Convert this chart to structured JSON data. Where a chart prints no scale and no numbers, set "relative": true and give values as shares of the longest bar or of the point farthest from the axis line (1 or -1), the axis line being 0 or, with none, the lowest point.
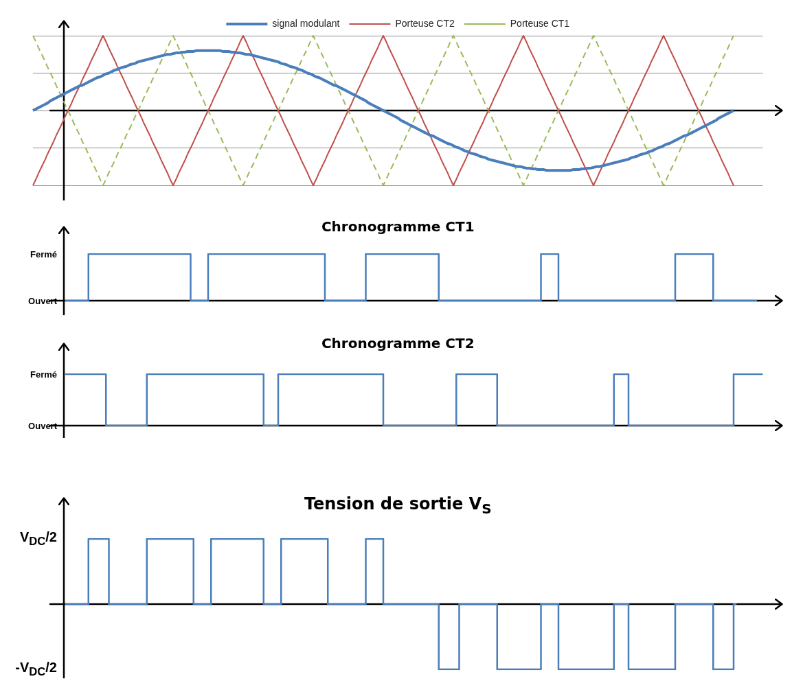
{
  "chart_data": [
    {
      "type": "line",
      "relative": true,
      "grid": "y",
      "legend": "top",
      "categories": [
        null,
        null,
        null,
        null,
        null,
        null,
        null,
        null,
        null,
        null,
        null,
        null,
        null,
        null,
        null,
        null,
        null,
        null,
        null,
        null,
        null,
        null,
        null,
        null,
        null,
        null,
        null,
        null,
        null,
        null,
        null,
        null,
        null,
        null,
        null,
        null,
        null,
        null,
        null,
        null,
        null,
        null,
        null,
        null,
        null,
        null,
        null,
        null,
        null,
        null,
        null,
        null,
        null,
        null,
        null,
        null,
        null,
        null,
        null,
        null,
        null,
        null,
        null,
        null,
        null,
        null,
        null,
        null,
        null,
        null,
        null,
        null,
        null,
        null,
        null,
        null,
        null,
        null,
        null,
        null,
        null,
        null,
        null,
        null,
        null,
        null,
        null,
        null,
        null,
        null,
        null,
        null,
        null,
        null,
        null,
        null,
        null,
        null,
        null,
        null,
        null,
        null,
        null,
        null,
        null,
        null,
        null,
        null,
        null,
        null,
        null,
        null,
        null,
        null,
        null,
        null,
        null,
        null,
        null,
        null,
        null,
        null,
        null,
        null,
        null,
        null,
        null,
        null,
        null,
        null,
        null,
        null,
        null,
        null,
        null,
        null,
        null,
        null,
        null,
        null,
        null,
        null,
        null,
        null,
        null,
        null,
        null,
        null,
        null,
        null,
        null,
        null,
        null,
        null,
        null,
        null,
        null,
        null,
        null,
        null,
        null,
        null,
        null,
        null,
        null,
        null,
        null,
        null,
        null,
        null,
        null,
        null,
        null,
        null,
        null,
        null,
        null,
        null,
        null,
        null,
        null,
        null,
        null,
        null,
        null,
        null,
        null,
        null,
        null,
        null,
        null,
        null,
        null,
        null,
        null,
        null,
        null,
        null,
        null,
        null,
        null,
        null,
        null,
        null,
        null,
        null,
        null,
        null,
        null,
        null,
        null,
        null,
        null,
        null,
        null,
        null,
        null,
        null,
        null,
        null,
        null,
        null,
        null,
        null,
        null,
        null,
        null,
        null,
        null,
        null,
        null,
        null,
        null,
        null,
        null,
        null,
        null,
        null,
        null,
        null,
        null,
        null,
        null,
        null,
        null,
        null,
        null,
        null,
        null,
        null,
        null
      ],
      "series": [
        {
          "name": "signal modulant",
          "color": "#4a7ebb",
          "values": [
            0,
            0.02,
            0.04,
            0.06,
            0.08,
            0.1,
            0.13,
            0.15,
            0.17,
            0.19,
            0.21,
            0.23,
            0.25,
            0.27,
            0.29,
            0.31,
            0.33,
            0.34,
            0.36,
            0.38,
            0.4,
            0.42,
            0.44,
            0.45,
            0.47,
            0.49,
            0.5,
            0.52,
            0.54,
            0.55,
            0.57,
            0.58,
            0.59,
            0.61,
            0.62,
            0.63,
            0.65,
            0.66,
            0.67,
            0.68,
            0.69,
            0.7,
            0.71,
            0.72,
            0.73,
            0.74,
            0.75,
            0.75,
            0.76,
            0.77,
            0.77,
            0.78,
            0.78,
            0.79,
            0.79,
            0.79,
            0.8,
            0.8,
            0.8,
            0.8,
            0.8,
            0.8,
            0.8,
            0.8,
            0.8,
            0.79,
            0.79,
            0.79,
            0.78,
            0.78,
            0.77,
            0.77,
            0.76,
            0.75,
            0.75,
            0.74,
            0.73,
            0.72,
            0.71,
            0.7,
            0.69,
            0.68,
            0.67,
            0.66,
            0.65,
            0.63,
            0.62,
            0.61,
            0.59,
            0.58,
            0.57,
            0.55,
            0.54,
            0.52,
            0.5,
            0.49,
            0.47,
            0.45,
            0.44,
            0.42,
            0.4,
            0.38,
            0.36,
            0.34,
            0.33,
            0.31,
            0.29,
            0.27,
            0.25,
            0.23,
            0.21,
            0.19,
            0.17,
            0.15,
            0.13,
            0.1,
            0.08,
            0.06,
            0.04,
            0.02,
            0,
            -0.02,
            -0.04,
            -0.06,
            -0.08,
            -0.1,
            -0.13,
            -0.15,
            -0.17,
            -0.19,
            -0.21,
            -0.23,
            -0.25,
            -0.27,
            -0.29,
            -0.31,
            -0.33,
            -0.34,
            -0.36,
            -0.38,
            -0.4,
            -0.42,
            -0.44,
            -0.45,
            -0.47,
            -0.49,
            -0.5,
            -0.52,
            -0.54,
            -0.55,
            -0.57,
            -0.58,
            -0.59,
            -0.61,
            -0.62,
            -0.63,
            -0.65,
            -0.66,
            -0.67,
            -0.68,
            -0.69,
            -0.7,
            -0.71,
            -0.72,
            -0.73,
            -0.74,
            -0.75,
            -0.75,
            -0.76,
            -0.77,
            -0.77,
            -0.78,
            -0.78,
            -0.79,
            -0.79,
            -0.79,
            -0.8,
            -0.8,
            -0.8,
            -0.8,
            -0.8,
            -0.8,
            -0.8,
            -0.8,
            -0.8,
            -0.79,
            -0.79,
            -0.79,
            -0.78,
            -0.78,
            -0.77,
            -0.77,
            -0.76,
            -0.75,
            -0.75,
            -0.74,
            -0.73,
            -0.72,
            -0.71,
            -0.7,
            -0.69,
            -0.68,
            -0.67,
            -0.66,
            -0.65,
            -0.63,
            -0.62,
            -0.61,
            -0.59,
            -0.58,
            -0.57,
            -0.55,
            -0.54,
            -0.52,
            -0.5,
            -0.49,
            -0.47,
            -0.45,
            -0.44,
            -0.42,
            -0.4,
            -0.38,
            -0.36,
            -0.34,
            -0.33,
            -0.31,
            -0.29,
            -0.27,
            -0.25,
            -0.23,
            -0.21,
            -0.19,
            -0.17,
            -0.15,
            -0.13,
            -0.1,
            -0.08,
            -0.06,
            -0.04,
            -0.02,
            0,
            null,
            null,
            null,
            null,
            null,
            null,
            null,
            null,
            null,
            null
          ]
        },
        {
          "name": "Porteuse CT2",
          "color": "#c0504d",
          "values": [
            -1,
            -0.92,
            -0.83,
            -0.75,
            -0.67,
            -0.58,
            -0.5,
            -0.42,
            -0.33,
            -0.25,
            -0.17,
            -0.08,
            0,
            0.08,
            0.17,
            0.25,
            0.33,
            0.42,
            0.5,
            0.58,
            0.67,
            0.75,
            0.83,
            0.92,
            1,
            0.92,
            0.83,
            0.75,
            0.67,
            0.58,
            0.5,
            0.42,
            0.33,
            0.25,
            0.17,
            0.08,
            0,
            -0.08,
            -0.17,
            -0.25,
            -0.33,
            -0.42,
            -0.5,
            -0.58,
            -0.67,
            -0.75,
            -0.83,
            -0.92,
            -1,
            -0.92,
            -0.83,
            -0.75,
            -0.67,
            -0.58,
            -0.5,
            -0.42,
            -0.33,
            -0.25,
            -0.17,
            -0.08,
            0,
            0.08,
            0.17,
            0.25,
            0.33,
            0.42,
            0.5,
            0.58,
            0.67,
            0.75,
            0.83,
            0.92,
            1,
            0.92,
            0.83,
            0.75,
            0.67,
            0.58,
            0.5,
            0.42,
            0.33,
            0.25,
            0.17,
            0.08,
            0,
            -0.08,
            -0.17,
            -0.25,
            -0.33,
            -0.42,
            -0.5,
            -0.58,
            -0.67,
            -0.75,
            -0.83,
            -0.92,
            -1,
            -0.92,
            -0.83,
            -0.75,
            -0.67,
            -0.58,
            -0.5,
            -0.42,
            -0.33,
            -0.25,
            -0.17,
            -0.08,
            0,
            0.08,
            0.17,
            0.25,
            0.33,
            0.42,
            0.5,
            0.58,
            0.67,
            0.75,
            0.83,
            0.92,
            1,
            0.92,
            0.83,
            0.75,
            0.67,
            0.58,
            0.5,
            0.42,
            0.33,
            0.25,
            0.17,
            0.08,
            0,
            -0.08,
            -0.17,
            -0.25,
            -0.33,
            -0.42,
            -0.5,
            -0.58,
            -0.67,
            -0.75,
            -0.83,
            -0.92,
            -1,
            -0.92,
            -0.83,
            -0.75,
            -0.67,
            -0.58,
            -0.5,
            -0.42,
            -0.33,
            -0.25,
            -0.17,
            -0.08,
            0,
            0.08,
            0.17,
            0.25,
            0.33,
            0.42,
            0.5,
            0.58,
            0.67,
            0.75,
            0.83,
            0.92,
            1,
            0.92,
            0.83,
            0.75,
            0.67,
            0.58,
            0.5,
            0.42,
            0.33,
            0.25,
            0.17,
            0.08,
            0,
            -0.08,
            -0.17,
            -0.25,
            -0.33,
            -0.42,
            -0.5,
            -0.58,
            -0.67,
            -0.75,
            -0.83,
            -0.92,
            -1,
            -0.92,
            -0.83,
            -0.75,
            -0.67,
            -0.58,
            -0.5,
            -0.42,
            -0.33,
            -0.25,
            -0.17,
            -0.08,
            0,
            0.08,
            0.17,
            0.25,
            0.33,
            0.42,
            0.5,
            0.58,
            0.67,
            0.75,
            0.83,
            0.92,
            1,
            0.92,
            0.83,
            0.75,
            0.67,
            0.58,
            0.5,
            0.42,
            0.33,
            0.25,
            0.17,
            0.08,
            0,
            -0.08,
            -0.17,
            -0.25,
            -0.33,
            -0.42,
            -0.5,
            -0.58,
            -0.67,
            -0.75,
            -0.83,
            -0.92,
            -1,
            null,
            null,
            null,
            null,
            null,
            null,
            null,
            null,
            null,
            null
          ]
        },
        {
          "name": "Porteuse CT1",
          "color": "#9bbb59",
          "line_style": "dashed",
          "values": [
            1,
            0.92,
            0.83,
            0.75,
            0.67,
            0.58,
            0.5,
            0.42,
            0.33,
            0.25,
            0.17,
            0.08,
            0,
            -0.08,
            -0.17,
            -0.25,
            -0.33,
            -0.42,
            -0.5,
            -0.58,
            -0.67,
            -0.75,
            -0.83,
            -0.92,
            -1,
            -0.92,
            -0.83,
            -0.75,
            -0.67,
            -0.58,
            -0.5,
            -0.42,
            -0.33,
            -0.25,
            -0.17,
            -0.08,
            0,
            0.08,
            0.17,
            0.25,
            0.33,
            0.42,
            0.5,
            0.58,
            0.67,
            0.75,
            0.83,
            0.92,
            1,
            0.92,
            0.83,
            0.75,
            0.67,
            0.58,
            0.5,
            0.42,
            0.33,
            0.25,
            0.17,
            0.08,
            0,
            -0.08,
            -0.17,
            -0.25,
            -0.33,
            -0.42,
            -0.5,
            -0.58,
            -0.67,
            -0.75,
            -0.83,
            -0.92,
            -1,
            -0.92,
            -0.83,
            -0.75,
            -0.67,
            -0.58,
            -0.5,
            -0.42,
            -0.33,
            -0.25,
            -0.17,
            -0.08,
            0,
            0.08,
            0.17,
            0.25,
            0.33,
            0.42,
            0.5,
            0.58,
            0.67,
            0.75,
            0.83,
            0.92,
            1,
            0.92,
            0.83,
            0.75,
            0.67,
            0.58,
            0.5,
            0.42,
            0.33,
            0.25,
            0.17,
            0.08,
            0,
            -0.08,
            -0.17,
            -0.25,
            -0.33,
            -0.42,
            -0.5,
            -0.58,
            -0.67,
            -0.75,
            -0.83,
            -0.92,
            -1,
            -0.92,
            -0.83,
            -0.75,
            -0.67,
            -0.58,
            -0.5,
            -0.42,
            -0.33,
            -0.25,
            -0.17,
            -0.08,
            0,
            0.08,
            0.17,
            0.25,
            0.33,
            0.42,
            0.5,
            0.58,
            0.67,
            0.75,
            0.83,
            0.92,
            1,
            0.92,
            0.83,
            0.75,
            0.67,
            0.58,
            0.5,
            0.42,
            0.33,
            0.25,
            0.17,
            0.08,
            0,
            -0.08,
            -0.17,
            -0.25,
            -0.33,
            -0.42,
            -0.5,
            -0.58,
            -0.67,
            -0.75,
            -0.83,
            -0.92,
            -1,
            -0.92,
            -0.83,
            -0.75,
            -0.67,
            -0.58,
            -0.5,
            -0.42,
            -0.33,
            -0.25,
            -0.17,
            -0.08,
            0,
            0.08,
            0.17,
            0.25,
            0.33,
            0.42,
            0.5,
            0.58,
            0.67,
            0.75,
            0.83,
            0.92,
            1,
            0.92,
            0.83,
            0.75,
            0.67,
            0.58,
            0.5,
            0.42,
            0.33,
            0.25,
            0.17,
            0.08,
            0,
            -0.08,
            -0.17,
            -0.25,
            -0.33,
            -0.42,
            -0.5,
            -0.58,
            -0.67,
            -0.75,
            -0.83,
            -0.92,
            -1,
            -0.92,
            -0.83,
            -0.75,
            -0.67,
            -0.58,
            -0.5,
            -0.42,
            -0.33,
            -0.25,
            -0.17,
            -0.08,
            0,
            0.08,
            0.17,
            0.25,
            0.33,
            0.42,
            0.5,
            0.58,
            0.67,
            0.75,
            0.83,
            0.92,
            1,
            null,
            null,
            null,
            null,
            null,
            null,
            null,
            null,
            null,
            null
          ]
        }
      ]
    },
    {
      "type": "step",
      "title": "Chronogramme CT1",
      "relative": true,
      "annotations": [
        "Fermé",
        "Ouvert"
      ],
      "categories": [
        null,
        null,
        null,
        null,
        null,
        null,
        null,
        null,
        null,
        null,
        null,
        null,
        null,
        null,
        null,
        null,
        null,
        null,
        null,
        null,
        null,
        null,
        null,
        null,
        null,
        null,
        null,
        null,
        null,
        null,
        null,
        null,
        null,
        null,
        null,
        null,
        null,
        null,
        null,
        null,
        null,
        null,
        null,
        null,
        null,
        null,
        null,
        null,
        null,
        null,
        null,
        null,
        null,
        null,
        null,
        null,
        null,
        null,
        null,
        null,
        null,
        null,
        null,
        null,
        null,
        null,
        null,
        null,
        null,
        null,
        null,
        null,
        null,
        null,
        null,
        null,
        null,
        null,
        null,
        null,
        null,
        null,
        null,
        null,
        null,
        null,
        null,
        null,
        null,
        null,
        null,
        null,
        null,
        null,
        null,
        null,
        null,
        null,
        null,
        null,
        null,
        null,
        null,
        null,
        null,
        null,
        null,
        null,
        null,
        null,
        null,
        null,
        null,
        null,
        null,
        null,
        null,
        null,
        null,
        null,
        null,
        null,
        null,
        null,
        null,
        null,
        null,
        null,
        null,
        null,
        null,
        null,
        null,
        null,
        null,
        null,
        null,
        null,
        null,
        null,
        null,
        null,
        null,
        null,
        null,
        null,
        null,
        null,
        null,
        null,
        null,
        null,
        null,
        null,
        null,
        null,
        null,
        null,
        null,
        null,
        null,
        null,
        null,
        null,
        null,
        null,
        null,
        null,
        null,
        null,
        null,
        null,
        null,
        null,
        null,
        null,
        null,
        null,
        null,
        null,
        null,
        null,
        null,
        null,
        null,
        null,
        null,
        null,
        null,
        null,
        null,
        null,
        null,
        null,
        null,
        null,
        null,
        null,
        null,
        null,
        null,
        null,
        null,
        null,
        null,
        null,
        null,
        null,
        null,
        null,
        null,
        null,
        null,
        null,
        null,
        null,
        null,
        null,
        null,
        null,
        null,
        null,
        null,
        null,
        null,
        null,
        null,
        null,
        null,
        null,
        null,
        null,
        null,
        null,
        null,
        null,
        null,
        null,
        null,
        null,
        null,
        null,
        null,
        null,
        null,
        null,
        null,
        null,
        null,
        null,
        null
      ],
      "color": "#4a7ebb",
      "values": [
        null,
        null,
        null,
        null,
        null,
        null,
        null,
        null,
        null,
        null,
        null,
        0,
        0,
        0,
        0,
        0,
        0,
        0,
        0,
        0,
        1,
        1,
        1,
        1,
        1,
        1,
        1,
        1,
        1,
        1,
        1,
        1,
        1,
        1,
        1,
        1,
        1,
        1,
        1,
        1,
        1,
        1,
        1,
        1,
        1,
        1,
        1,
        1,
        1,
        1,
        1,
        1,
        1,
        1,
        1,
        0,
        0,
        0,
        0,
        0,
        0,
        1,
        1,
        1,
        1,
        1,
        1,
        1,
        1,
        1,
        1,
        1,
        1,
        1,
        1,
        1,
        1,
        1,
        1,
        1,
        1,
        1,
        1,
        1,
        1,
        1,
        1,
        1,
        1,
        1,
        1,
        1,
        1,
        1,
        1,
        1,
        1,
        1,
        1,
        1,
        1,
        0,
        0,
        0,
        0,
        0,
        0,
        0,
        0,
        0,
        0,
        0,
        0,
        0,
        0,
        1,
        1,
        1,
        1,
        1,
        1,
        1,
        1,
        1,
        1,
        1,
        1,
        1,
        1,
        1,
        1,
        1,
        1,
        1,
        1,
        1,
        1,
        1,
        1,
        1,
        0,
        0,
        0,
        0,
        0,
        0,
        0,
        0,
        0,
        0,
        0,
        0,
        0,
        0,
        0,
        0,
        0,
        0,
        0,
        0,
        0,
        0,
        0,
        0,
        0,
        0,
        0,
        0,
        0,
        0,
        0,
        0,
        0,
        0,
        0,
        1,
        1,
        1,
        1,
        1,
        1,
        0,
        0,
        0,
        0,
        0,
        0,
        0,
        0,
        0,
        0,
        0,
        0,
        0,
        0,
        0,
        0,
        0,
        0,
        0,
        0,
        0,
        0,
        0,
        0,
        0,
        0,
        0,
        0,
        0,
        0,
        0,
        0,
        0,
        0,
        0,
        0,
        0,
        0,
        0,
        0,
        1,
        1,
        1,
        1,
        1,
        1,
        1,
        1,
        1,
        1,
        1,
        1,
        1,
        0,
        0,
        0,
        0,
        0,
        0,
        0,
        0,
        0,
        0,
        0,
        0,
        0,
        0,
        0,
        null,
        null
      ]
    },
    {
      "type": "step",
      "title": "Chronogramme CT2",
      "relative": true,
      "annotations": [
        "Fermé",
        "Ouvert"
      ],
      "categories": [
        null,
        null,
        null,
        null,
        null,
        null,
        null,
        null,
        null,
        null,
        null,
        null,
        null,
        null,
        null,
        null,
        null,
        null,
        null,
        null,
        null,
        null,
        null,
        null,
        null,
        null,
        null,
        null,
        null,
        null,
        null,
        null,
        null,
        null,
        null,
        null,
        null,
        null,
        null,
        null,
        null,
        null,
        null,
        null,
        null,
        null,
        null,
        null,
        null,
        null,
        null,
        null,
        null,
        null,
        null,
        null,
        null,
        null,
        null,
        null,
        null,
        null,
        null,
        null,
        null,
        null,
        null,
        null,
        null,
        null,
        null,
        null,
        null,
        null,
        null,
        null,
        null,
        null,
        null,
        null,
        null,
        null,
        null,
        null,
        null,
        null,
        null,
        null,
        null,
        null,
        null,
        null,
        null,
        null,
        null,
        null,
        null,
        null,
        null,
        null,
        null,
        null,
        null,
        null,
        null,
        null,
        null,
        null,
        null,
        null,
        null,
        null,
        null,
        null,
        null,
        null,
        null,
        null,
        null,
        null,
        null,
        null,
        null,
        null,
        null,
        null,
        null,
        null,
        null,
        null,
        null,
        null,
        null,
        null,
        null,
        null,
        null,
        null,
        null,
        null,
        null,
        null,
        null,
        null,
        null,
        null,
        null,
        null,
        null,
        null,
        null,
        null,
        null,
        null,
        null,
        null,
        null,
        null,
        null,
        null,
        null,
        null,
        null,
        null,
        null,
        null,
        null,
        null,
        null,
        null,
        null,
        null,
        null,
        null,
        null,
        null,
        null,
        null,
        null,
        null,
        null,
        null,
        null,
        null,
        null,
        null,
        null,
        null,
        null,
        null,
        null,
        null,
        null,
        null,
        null,
        null,
        null,
        null,
        null,
        null,
        null,
        null,
        null,
        null,
        null,
        null,
        null,
        null,
        null,
        null,
        null,
        null,
        null,
        null,
        null,
        null,
        null,
        null,
        null,
        null,
        null,
        null,
        null,
        null,
        null,
        null,
        null,
        null,
        null,
        null,
        null,
        null,
        null,
        null,
        null,
        null,
        null,
        null,
        null,
        null,
        null,
        null,
        null,
        null,
        null,
        null,
        null,
        null,
        null,
        null,
        null
      ],
      "color": "#4a7ebb",
      "values": [
        null,
        null,
        null,
        null,
        null,
        null,
        null,
        null,
        null,
        null,
        null,
        1,
        1,
        1,
        1,
        1,
        1,
        1,
        1,
        1,
        1,
        1,
        1,
        1,
        1,
        1,
        0,
        0,
        0,
        0,
        0,
        0,
        0,
        0,
        0,
        0,
        0,
        0,
        0,
        0,
        1,
        1,
        1,
        1,
        1,
        1,
        1,
        1,
        1,
        1,
        1,
        1,
        1,
        1,
        1,
        1,
        1,
        1,
        1,
        1,
        1,
        1,
        1,
        1,
        1,
        1,
        1,
        1,
        1,
        1,
        1,
        1,
        1,
        1,
        1,
        1,
        1,
        1,
        1,
        1,
        0,
        0,
        0,
        0,
        0,
        1,
        1,
        1,
        1,
        1,
        1,
        1,
        1,
        1,
        1,
        1,
        1,
        1,
        1,
        1,
        1,
        1,
        1,
        1,
        1,
        1,
        1,
        1,
        1,
        1,
        1,
        1,
        1,
        1,
        1,
        1,
        1,
        1,
        1,
        1,
        1,
        0,
        0,
        0,
        0,
        0,
        0,
        0,
        0,
        0,
        0,
        0,
        0,
        0,
        0,
        0,
        0,
        0,
        0,
        0,
        0,
        0,
        0,
        0,
        0,
        0,
        1,
        1,
        1,
        1,
        1,
        1,
        1,
        1,
        1,
        1,
        1,
        1,
        1,
        1,
        0,
        0,
        0,
        0,
        0,
        0,
        0,
        0,
        0,
        0,
        0,
        0,
        0,
        0,
        0,
        0,
        0,
        0,
        0,
        0,
        0,
        0,
        0,
        0,
        0,
        0,
        0,
        0,
        0,
        0,
        0,
        0,
        0,
        0,
        0,
        0,
        0,
        0,
        0,
        0,
        1,
        1,
        1,
        1,
        1,
        0,
        0,
        0,
        0,
        0,
        0,
        0,
        0,
        0,
        0,
        0,
        0,
        0,
        0,
        0,
        0,
        0,
        0,
        0,
        0,
        0,
        0,
        0,
        0,
        0,
        0,
        0,
        0,
        0,
        0,
        0,
        0,
        0,
        0,
        0,
        0,
        1,
        1,
        1,
        1,
        1,
        1,
        1,
        1,
        1,
        1
      ]
    },
    {
      "type": "step",
      "title": "Tension de sortie V$_{S}$",
      "relative": true,
      "annotations": [
        "V$_{DC}$/2",
        "-V$_{DC}$/2"
      ],
      "categories": [
        null,
        null,
        null,
        null,
        null,
        null,
        null,
        null,
        null,
        null,
        null,
        null,
        null,
        null,
        null,
        null,
        null,
        null,
        null,
        null,
        null,
        null,
        null,
        null,
        null,
        null,
        null,
        null,
        null,
        null,
        null,
        null,
        null,
        null,
        null,
        null,
        null,
        null,
        null,
        null,
        null,
        null,
        null,
        null,
        null,
        null,
        null,
        null,
        null,
        null,
        null,
        null,
        null,
        null,
        null,
        null,
        null,
        null,
        null,
        null,
        null,
        null,
        null,
        null,
        null,
        null,
        null,
        null,
        null,
        null,
        null,
        null,
        null,
        null,
        null,
        null,
        null,
        null,
        null,
        null,
        null,
        null,
        null,
        null,
        null,
        null,
        null,
        null,
        null,
        null,
        null,
        null,
        null,
        null,
        null,
        null,
        null,
        null,
        null,
        null,
        null,
        null,
        null,
        null,
        null,
        null,
        null,
        null,
        null,
        null,
        null,
        null,
        null,
        null,
        null,
        null,
        null,
        null,
        null,
        null,
        null,
        null,
        null,
        null,
        null,
        null,
        null,
        null,
        null,
        null,
        null,
        null,
        null,
        null,
        null,
        null,
        null,
        null,
        null,
        null,
        null,
        null,
        null,
        null,
        null,
        null,
        null,
        null,
        null,
        null,
        null,
        null,
        null,
        null,
        null,
        null,
        null,
        null,
        null,
        null,
        null,
        null,
        null,
        null,
        null,
        null,
        null,
        null,
        null,
        null,
        null,
        null,
        null,
        null,
        null,
        null,
        null,
        null,
        null,
        null,
        null,
        null,
        null,
        null,
        null,
        null,
        null,
        null,
        null,
        null,
        null,
        null,
        null,
        null,
        null,
        null,
        null,
        null,
        null,
        null,
        null,
        null,
        null,
        null,
        null,
        null,
        null,
        null,
        null,
        null,
        null,
        null,
        null,
        null,
        null,
        null,
        null,
        null,
        null,
        null,
        null,
        null,
        null,
        null,
        null,
        null,
        null,
        null,
        null,
        null,
        null,
        null,
        null,
        null,
        null,
        null,
        null,
        null,
        null,
        null,
        null,
        null,
        null,
        null,
        null,
        null,
        null,
        null,
        null,
        null,
        null
      ],
      "color": "#4a7ebb",
      "values": [
        null,
        null,
        null,
        null,
        null,
        null,
        null,
        null,
        null,
        null,
        null,
        0,
        0,
        0,
        0,
        0,
        0,
        0,
        0,
        0,
        1,
        1,
        1,
        1,
        1,
        1,
        1,
        0,
        0,
        0,
        0,
        0,
        0,
        0,
        0,
        0,
        0,
        0,
        0,
        0,
        1,
        1,
        1,
        1,
        1,
        1,
        1,
        1,
        1,
        1,
        1,
        1,
        1,
        1,
        1,
        1,
        0,
        0,
        0,
        0,
        0,
        0,
        1,
        1,
        1,
        1,
        1,
        1,
        1,
        1,
        1,
        1,
        1,
        1,
        1,
        1,
        1,
        1,
        1,
        1,
        0,
        0,
        0,
        0,
        0,
        0,
        1,
        1,
        1,
        1,
        1,
        1,
        1,
        1,
        1,
        1,
        1,
        1,
        1,
        1,
        1,
        1,
        0,
        0,
        0,
        0,
        0,
        0,
        0,
        0,
        0,
        0,
        0,
        0,
        0,
        1,
        1,
        1,
        1,
        1,
        1,
        0,
        0,
        0,
        0,
        0,
        0,
        0,
        0,
        0,
        0,
        0,
        0,
        0,
        0,
        0,
        0,
        0,
        0,
        0,
        -1,
        -1,
        -1,
        -1,
        -1,
        -1,
        -1,
        0,
        0,
        0,
        0,
        0,
        0,
        0,
        0,
        0,
        0,
        0,
        0,
        0,
        -1,
        -1,
        -1,
        -1,
        -1,
        -1,
        -1,
        -1,
        -1,
        -1,
        -1,
        -1,
        -1,
        -1,
        -1,
        0,
        0,
        0,
        0,
        0,
        0,
        -1,
        -1,
        -1,
        -1,
        -1,
        -1,
        -1,
        -1,
        -1,
        -1,
        -1,
        -1,
        -1,
        -1,
        -1,
        -1,
        -1,
        -1,
        -1,
        0,
        0,
        0,
        0,
        0,
        -1,
        -1,
        -1,
        -1,
        -1,
        -1,
        -1,
        -1,
        -1,
        -1,
        -1,
        -1,
        -1,
        -1,
        -1,
        -1,
        0,
        0,
        0,
        0,
        0,
        0,
        0,
        0,
        0,
        0,
        0,
        0,
        0,
        -1,
        -1,
        -1,
        -1,
        -1,
        -1,
        -1,
        0,
        null,
        null,
        null,
        null,
        null,
        null,
        null,
        null,
        null
      ]
    }
  ]
}
